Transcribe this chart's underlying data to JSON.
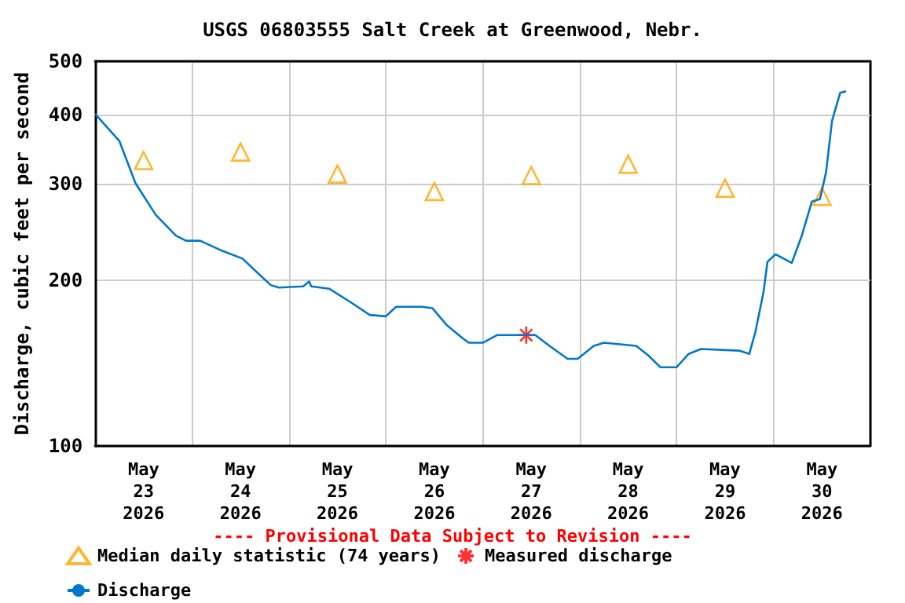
{
  "chart_data": {
    "type": "line",
    "title": "USGS 06803555 Salt Creek at Greenwood, Nebr.",
    "ylabel": "Discharge, cubic feet per second",
    "annotations": [
      "---- Provisional Data Subject to Revision ----"
    ],
    "xlim": [
      "2026-05-23T00:00",
      "2026-05-31T00:00"
    ],
    "xticks": [
      {
        "value": "2026-05-24T00:00",
        "label": null
      },
      {
        "value": "2026-05-25T00:00",
        "label": null
      },
      {
        "value": "2026-05-26T00:00",
        "label": null
      },
      {
        "value": "2026-05-27T00:00",
        "label": null
      },
      {
        "value": "2026-05-28T00:00",
        "label": null
      },
      {
        "value": "2026-05-29T00:00",
        "label": null
      },
      {
        "value": "2026-05-30T00:00",
        "label": null
      },
      {
        "value": "2026-05-23T12:00",
        "label": "May\n23\n2026"
      },
      {
        "value": "2026-05-24T12:00",
        "label": "May\n24\n2026"
      },
      {
        "value": "2026-05-25T12:00",
        "label": "May\n25\n2026"
      },
      {
        "value": "2026-05-26T12:00",
        "label": "May\n26\n2026"
      },
      {
        "value": "2026-05-27T12:00",
        "label": "May\n27\n2026"
      },
      {
        "value": "2026-05-28T12:00",
        "label": "May\n28\n2026"
      },
      {
        "value": "2026-05-29T12:00",
        "label": "May\n29\n2026"
      },
      {
        "value": "2026-05-30T12:00",
        "label": "May\n30\n2026"
      }
    ],
    "ylim": [
      100,
      500
    ],
    "yticks": [
      100,
      200,
      300,
      400,
      500
    ],
    "log": "y",
    "grid": true,
    "legend": "bottom",
    "series": [
      {
        "name": "Median daily statistic (74 years)",
        "type": "scatter",
        "marker": "triangle",
        "color": "#ffa500",
        "x": [
          "2026-05-23T12:00",
          "2026-05-24T12:00",
          "2026-05-25T12:00",
          "2026-05-26T12:00",
          "2026-05-27T12:00",
          "2026-05-28T12:00",
          "2026-05-29T12:00",
          "2026-05-30T12:00"
        ],
        "values": [
          330,
          342,
          312,
          290,
          310,
          325,
          294,
          284
        ]
      },
      {
        "name": "Measured discharge",
        "type": "scatter",
        "marker": "cross",
        "color": "#ff0000",
        "x": [
          "2026-05-27T10:45"
        ],
        "values": [
          159
        ]
      },
      {
        "name": "Discharge",
        "marker": "none",
        "color": "#0077cc",
        "x": [
          "2026-05-23T00:00",
          "2026-05-23T06:00",
          "2026-05-23T10:00",
          "2026-05-23T15:00",
          "2026-05-23T20:00",
          "2026-05-23T22:30",
          "2026-05-24T02:00",
          "2026-05-24T07:00",
          "2026-05-24T12:30",
          "2026-05-24T16:00",
          "2026-05-24T19:30",
          "2026-05-24T21:30",
          "2026-05-25T03:30",
          "2026-05-25T05:00",
          "2026-05-25T05:30",
          "2026-05-25T10:00",
          "2026-05-25T15:00",
          "2026-05-25T20:00",
          "2026-05-26T00:00",
          "2026-05-26T02:30",
          "2026-05-26T09:00",
          "2026-05-26T11:30",
          "2026-05-26T15:00",
          "2026-05-26T19:00",
          "2026-05-26T20:30",
          "2026-05-27T00:00",
          "2026-05-27T03:30",
          "2026-05-27T13:00",
          "2026-05-27T16:30",
          "2026-05-27T21:00",
          "2026-05-27T23:30",
          "2026-05-28T03:30",
          "2026-05-28T06:00",
          "2026-05-28T14:00",
          "2026-05-28T17:00",
          "2026-05-28T20:00",
          "2026-05-29T00:00",
          "2026-05-29T03:00",
          "2026-05-29T06:00",
          "2026-05-29T15:30",
          "2026-05-29T18:00",
          "2026-05-29T19:30",
          "2026-05-29T21:30",
          "2026-05-29T22:30",
          "2026-05-30T00:30",
          "2026-05-30T04:30",
          "2026-05-30T07:00",
          "2026-05-30T09:30",
          "2026-05-30T11:30",
          "2026-05-30T13:00",
          "2026-05-30T14:30",
          "2026-05-30T16:30",
          "2026-05-30T18:00"
        ],
        "values": [
          401,
          358,
          300,
          263,
          241,
          236,
          236,
          227,
          219,
          207,
          196,
          194,
          195,
          199,
          195,
          193,
          183,
          173,
          172,
          179,
          179,
          178,
          166,
          157,
          154,
          154,
          159,
          159,
          152,
          144,
          144,
          152,
          154,
          152,
          146,
          139,
          139,
          147,
          150,
          149,
          147,
          161,
          190,
          216,
          223,
          215,
          241,
          278,
          281,
          314,
          390,
          438,
          441
        ]
      }
    ]
  }
}
